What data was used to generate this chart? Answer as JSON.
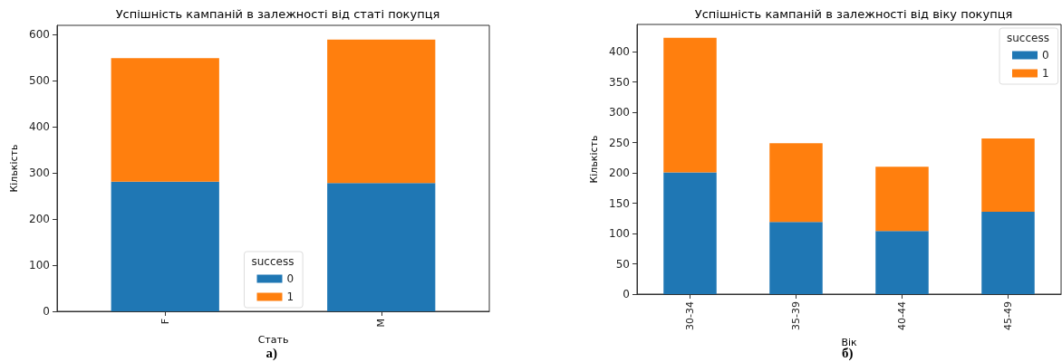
{
  "chart_data": [
    {
      "type": "bar",
      "title": "Успішність кампаній в залежності від статі покупця",
      "xlabel": "Стать",
      "ylabel": "Кількість",
      "legend_title": "success",
      "categories": [
        "F",
        "M"
      ],
      "stacked": true,
      "series": [
        {
          "name": "0",
          "color": "#1f77b4",
          "values": [
            281,
            278
          ]
        },
        {
          "name": "1",
          "color": "#ff7f0e",
          "values": [
            268,
            311
          ]
        }
      ],
      "ylim": [
        0,
        620
      ],
      "yticks": [
        0,
        100,
        200,
        300,
        400,
        500,
        600
      ],
      "grid": false,
      "legend": "bottom",
      "annotations": [
        "а)"
      ]
    },
    {
      "type": "bar",
      "title": "Успішність кампаній в залежності від віку покупця",
      "xlabel": "Вік",
      "ylabel": "Кількість",
      "legend_title": "success",
      "categories": [
        "30-34",
        "35-39",
        "40-44",
        "45-49"
      ],
      "stacked": true,
      "series": [
        {
          "name": "0",
          "color": "#1f77b4",
          "values": [
            201,
            119,
            104,
            136
          ]
        },
        {
          "name": "1",
          "color": "#ff7f0e",
          "values": [
            222,
            130,
            106,
            121
          ]
        }
      ],
      "ylim": [
        0,
        445
      ],
      "yticks": [
        0,
        50,
        100,
        150,
        200,
        250,
        300,
        350,
        400
      ],
      "grid": false,
      "legend": "top right",
      "annotations": [
        "б)"
      ]
    }
  ]
}
